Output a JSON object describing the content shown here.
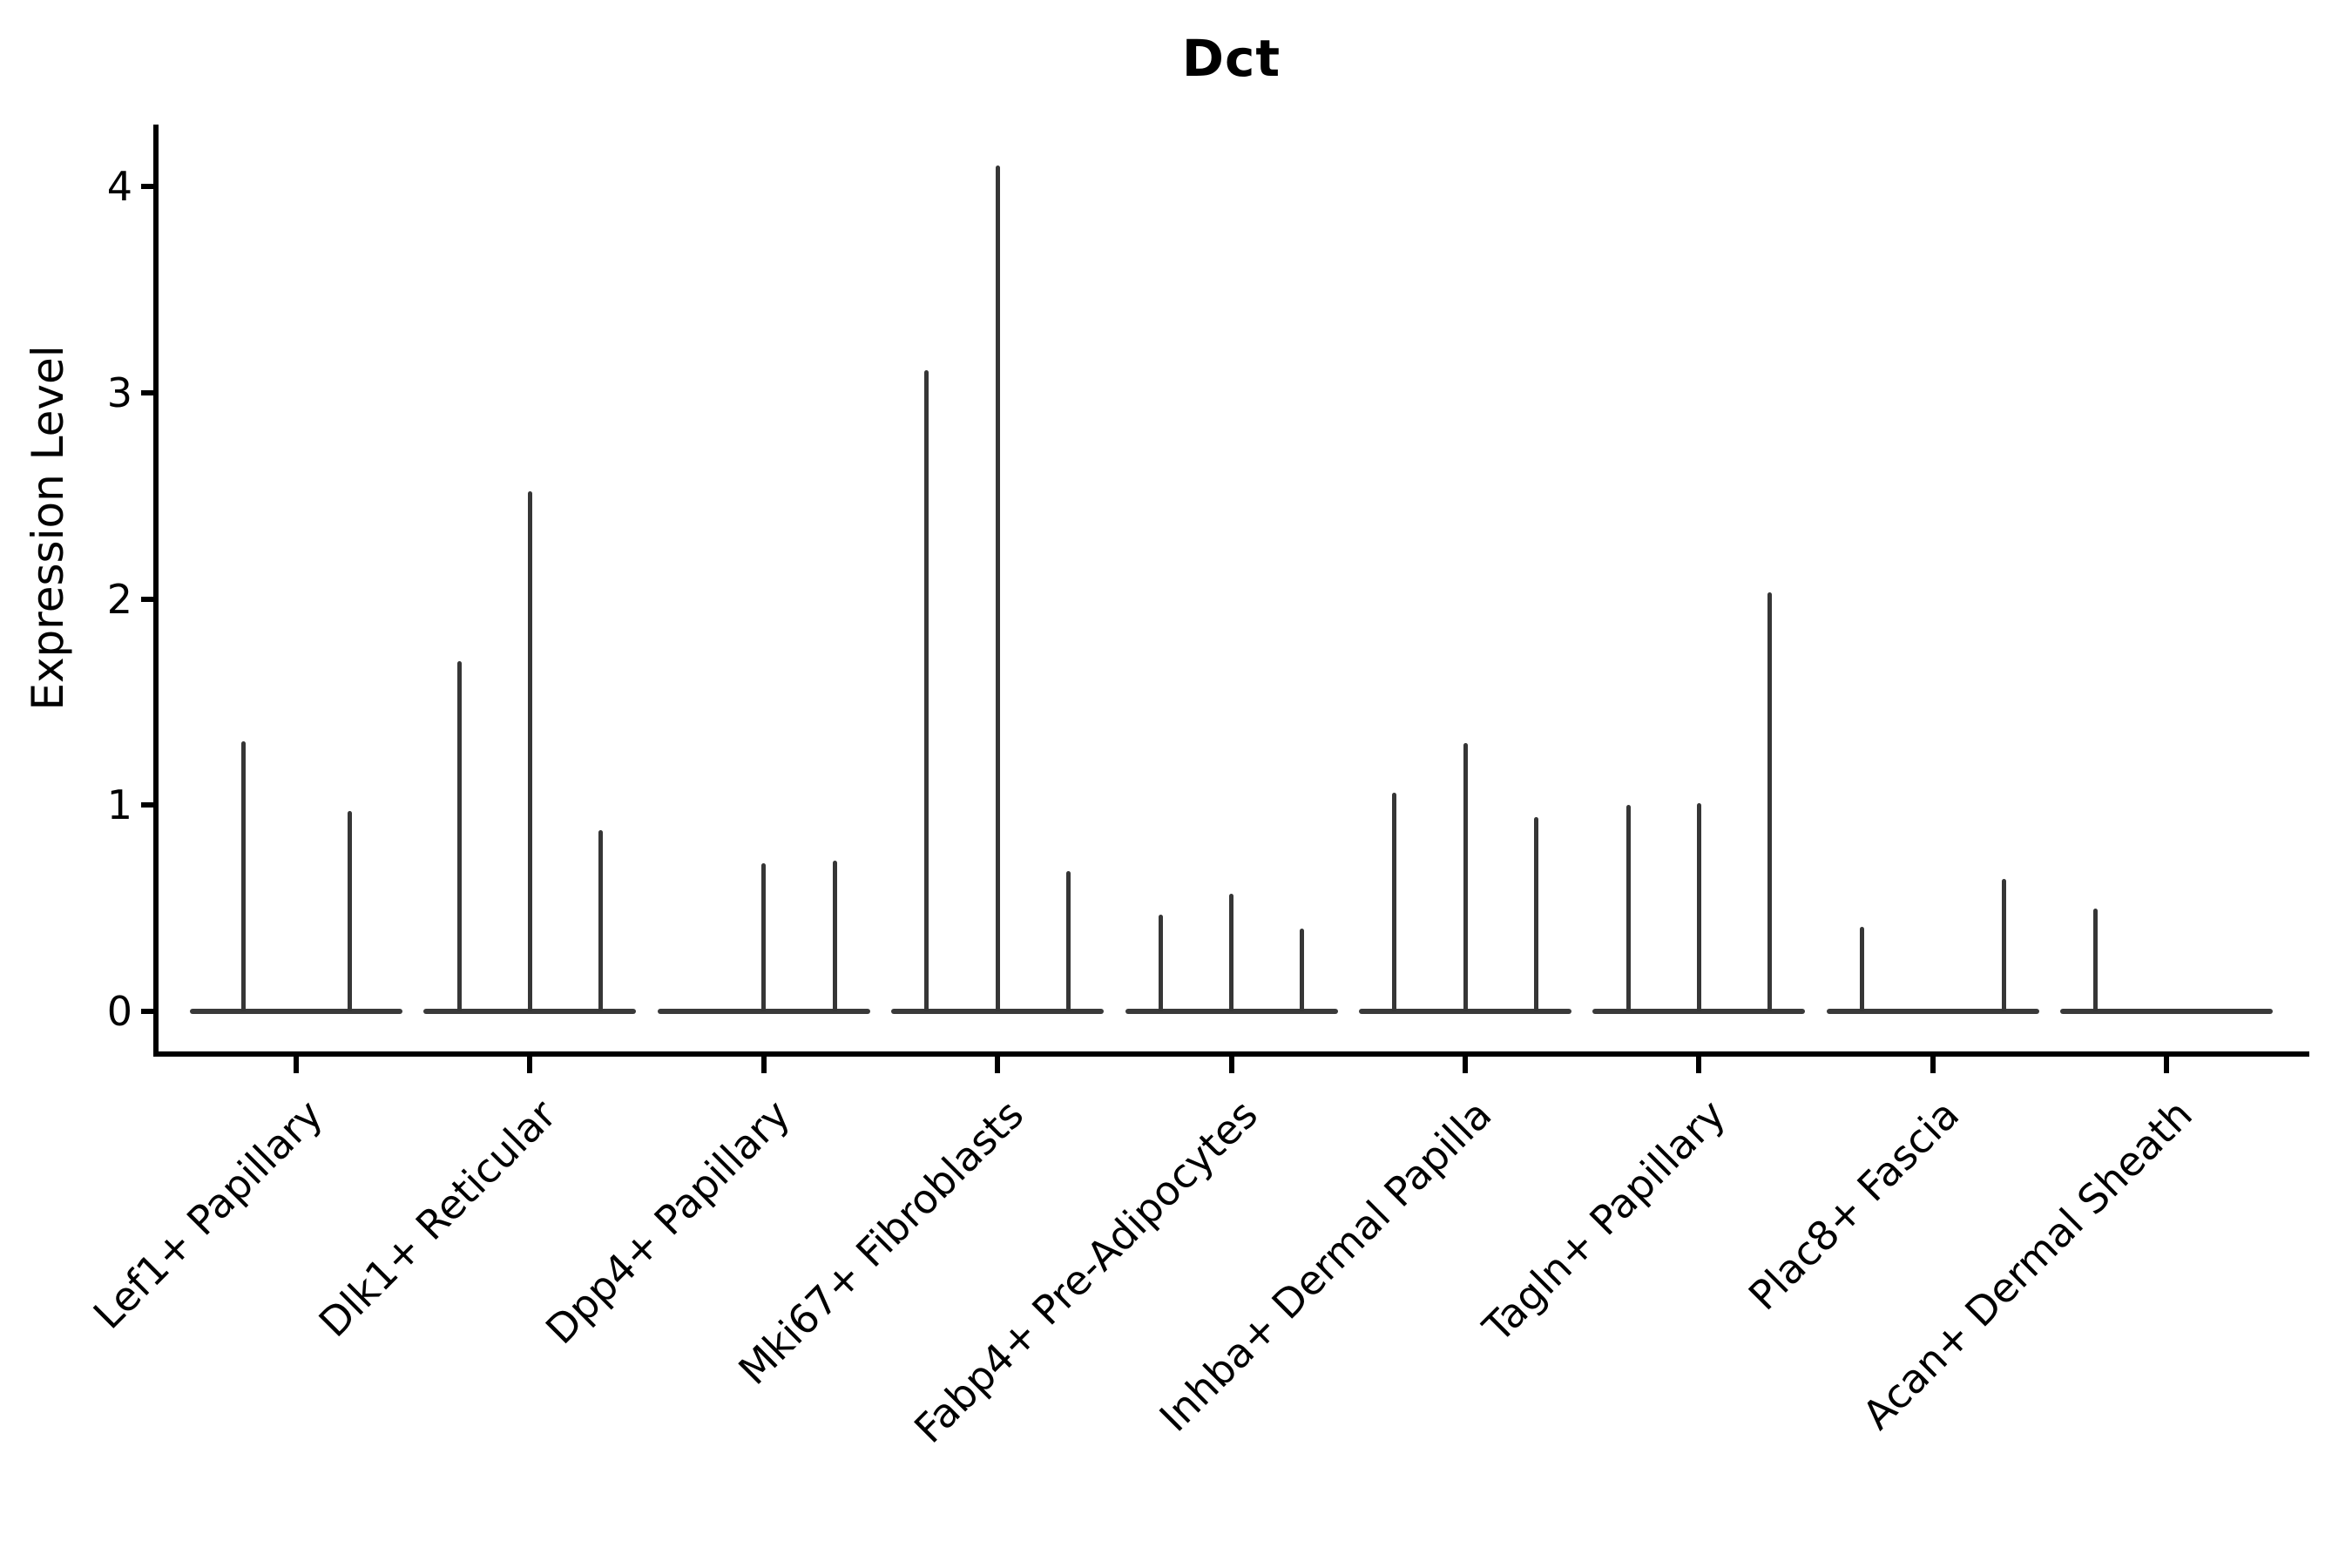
{
  "chart_data": {
    "type": "violin",
    "title": "Dct",
    "xlabel": "",
    "ylabel": "Expression Level",
    "ylim": [
      0,
      4.35
    ],
    "yticks": [
      0,
      1,
      2,
      3,
      4
    ],
    "grid": false,
    "legend_position": "none",
    "categories": [
      "Lef1+ Papillary",
      "Dlk1+ Reticular",
      "Dpp4+ Papillary",
      "Mki67+ Fibroblasts",
      "Fabp4+ Pre-Adipocytes",
      "Inhba+ Dermal Papilla",
      "Tagln+ Papillary",
      "Plac8+ Fascia",
      "Acan+ Dermal Sheath"
    ],
    "groups": [
      {
        "label": "Lef1+ Papillary",
        "violin_maxima": [
          1.31,
          0.97
        ]
      },
      {
        "label": "Dlk1+ Reticular",
        "violin_maxima": [
          1.7,
          2.52,
          0.88
        ]
      },
      {
        "label": "Dpp4+ Papillary",
        "violin_maxima": [
          0,
          0.72,
          0.73
        ]
      },
      {
        "label": "Mki67+ Fibroblasts",
        "violin_maxima": [
          3.11,
          4.1,
          0.68
        ]
      },
      {
        "label": "Fabp4+ Pre-Adipocytes",
        "violin_maxima": [
          0.47,
          0.57,
          0.4
        ]
      },
      {
        "label": "Inhba+ Dermal Papilla",
        "violin_maxima": [
          1.06,
          1.3,
          0.94
        ]
      },
      {
        "label": "Tagln+ Papillary",
        "violin_maxima": [
          1.0,
          1.01,
          2.03
        ]
      },
      {
        "label": "Plac8+ Fascia",
        "violin_maxima": [
          0.41,
          0,
          0.64
        ]
      },
      {
        "label": "Acan+ Dermal Sheath",
        "violin_maxima": [
          0.5,
          0,
          0
        ]
      }
    ],
    "note": "Sparse-expression violin plot: each violin is a flat baseline at 0 with a thin spike up to its maximum expression value; 0 means no visible spike."
  },
  "colors": {
    "background": "#ffffff",
    "axis": "#000000",
    "text": "#000000",
    "violin_stroke": "#363636",
    "violin_baseline": "#3a3a3a"
  }
}
